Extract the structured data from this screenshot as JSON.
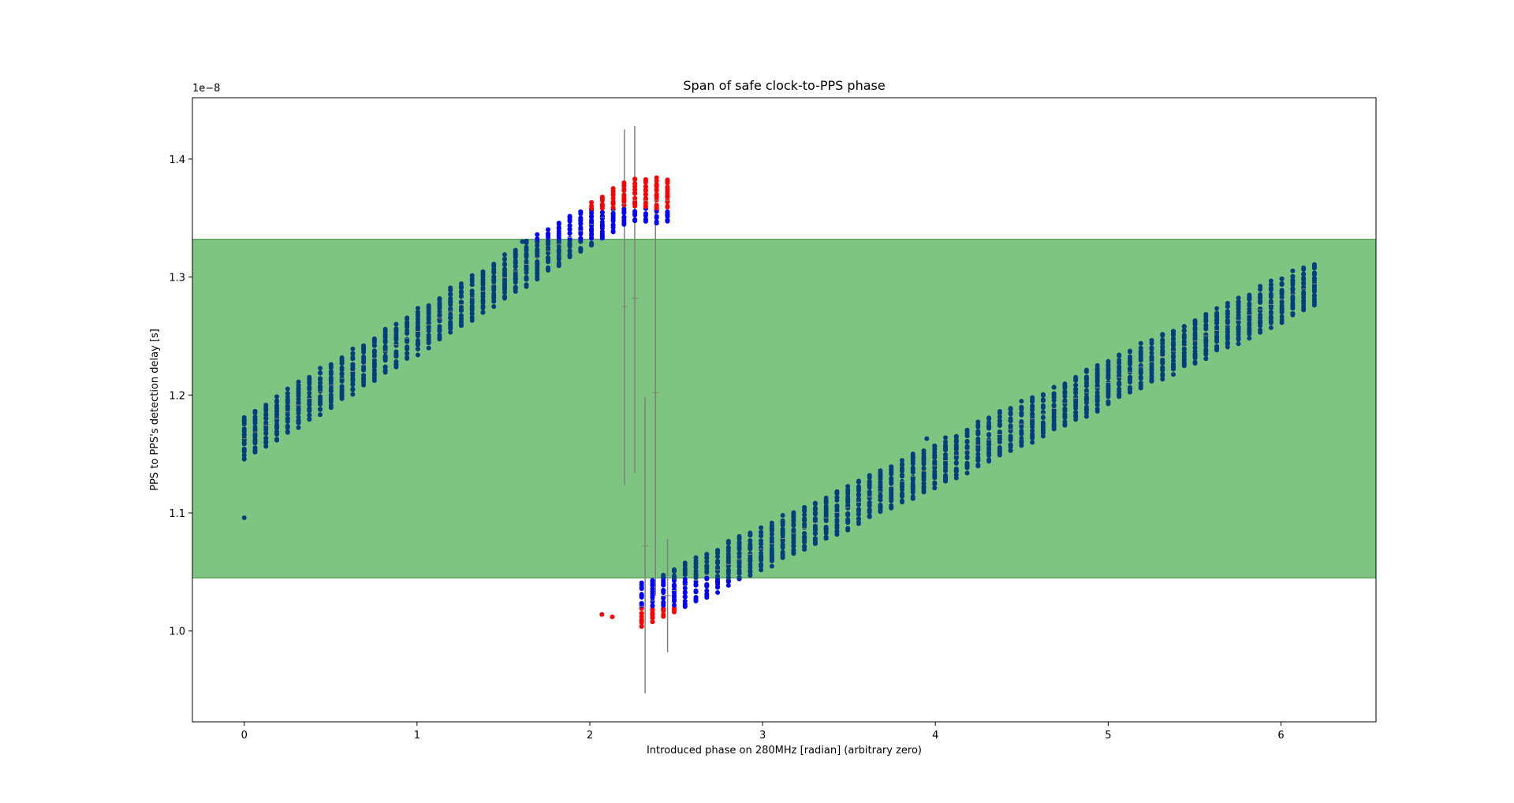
{
  "chart_data": {
    "type": "scatter",
    "title": "Span of safe clock-to-PPS phase",
    "xlabel": "Introduced phase on 280MHz [radian] (arbitrary zero)",
    "ylabel": "PPS to PPS's detection delay [s]",
    "y_offset_text": "1e−8",
    "y_scale_multiplier": 1e-08,
    "xlim": [
      -0.3,
      6.55
    ],
    "ylim": [
      0.923,
      1.452
    ],
    "x_ticks": [
      0,
      1,
      2,
      3,
      4,
      5,
      6
    ],
    "y_ticks": [
      1.0,
      1.1,
      1.2,
      1.3,
      1.4
    ],
    "grid": false,
    "legend": "none",
    "safe_band": {
      "y_min": 1.045,
      "y_max": 1.332,
      "color": "#4caf50"
    },
    "colors": {
      "safe": "#003f7f",
      "marginal": "#0000ff",
      "unsafe": "#ff0000",
      "errorbar": "#808080"
    },
    "phase_step": 0.0628,
    "clusters_count": 100,
    "upper_branch": {
      "start_x": 0.0,
      "start_center": 1.163,
      "slope": 0.0905,
      "ends_after_x": 2.45
    },
    "lower_branch": {
      "start_x": 2.3,
      "start_center": 1.021,
      "slope": 0.0702,
      "ends_at_x": 6.22
    },
    "cluster_half_span": 0.018,
    "outliers": [
      {
        "x": 0.0,
        "y": 1.096,
        "status": "safe"
      },
      {
        "x": 2.07,
        "y": 1.014,
        "status": "unsafe"
      },
      {
        "x": 2.13,
        "y": 1.012,
        "status": "unsafe"
      },
      {
        "x": 3.95,
        "y": 1.163,
        "status": "safe"
      },
      {
        "x": 1.61,
        "y": 1.33,
        "status": "safe"
      }
    ],
    "error_bars": [
      {
        "x": 2.2,
        "mean": 1.275,
        "low": 1.124,
        "high": 1.425
      },
      {
        "x": 2.26,
        "mean": 1.282,
        "low": 1.134,
        "high": 1.428
      },
      {
        "x": 2.32,
        "mean": 1.072,
        "low": 0.947,
        "high": 1.198
      },
      {
        "x": 2.38,
        "mean": 1.202,
        "low": 1.03,
        "high": 1.374
      },
      {
        "x": 2.45,
        "mean": 1.03,
        "low": 0.982,
        "high": 1.078
      }
    ]
  }
}
